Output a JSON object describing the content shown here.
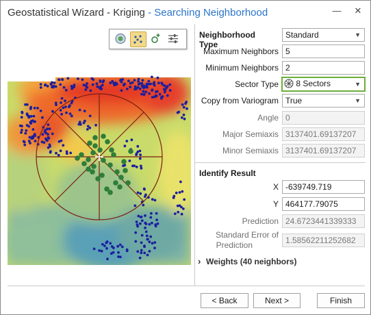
{
  "window": {
    "title_main": "Geostatistical Wizard - Kriging",
    "title_sub": " - Searching Neighborhood",
    "minimize_glyph": "—",
    "close_glyph": "✕"
  },
  "toolbar": {
    "icons": [
      "preview-mode-icon",
      "identify-point-icon",
      "add-point-icon",
      "adjust-settings-icon"
    ]
  },
  "params": {
    "neighborhood_type": {
      "label": "Neighborhood Type",
      "value": "Standard"
    },
    "max_neighbors": {
      "label": "Maximum Neighbors",
      "value": "5"
    },
    "min_neighbors": {
      "label": "Minimum Neighbors",
      "value": "2"
    },
    "sector_type": {
      "label": "Sector Type",
      "value": "8 Sectors"
    },
    "copy_from_variogram": {
      "label": "Copy from Variogram",
      "value": "True"
    },
    "angle": {
      "label": "Angle",
      "value": "0"
    },
    "major_semiaxis": {
      "label": "Major Semiaxis",
      "value": "3137401.69137207"
    },
    "minor_semiaxis": {
      "label": "Minor Semiaxis",
      "value": "3137401.69137207"
    }
  },
  "identify": {
    "title": "Identify Result",
    "x": {
      "label": "X",
      "value": "-639749.719"
    },
    "y": {
      "label": "Y",
      "value": "464177.79075"
    },
    "prediction": {
      "label": "Prediction",
      "value": "24.6723441339333"
    },
    "std_error": {
      "label_line1": "Standard Error of",
      "label_line2": "Prediction",
      "value": "1.58562211252682"
    }
  },
  "weights": {
    "label": "Weights (40 neighbors)",
    "chevron": "›"
  },
  "buttons": {
    "back": "< Back",
    "next": "Next >",
    "finish": "Finish"
  },
  "colors": {
    "title_accent": "#2a74c9",
    "highlight_border": "#6cae3a"
  }
}
